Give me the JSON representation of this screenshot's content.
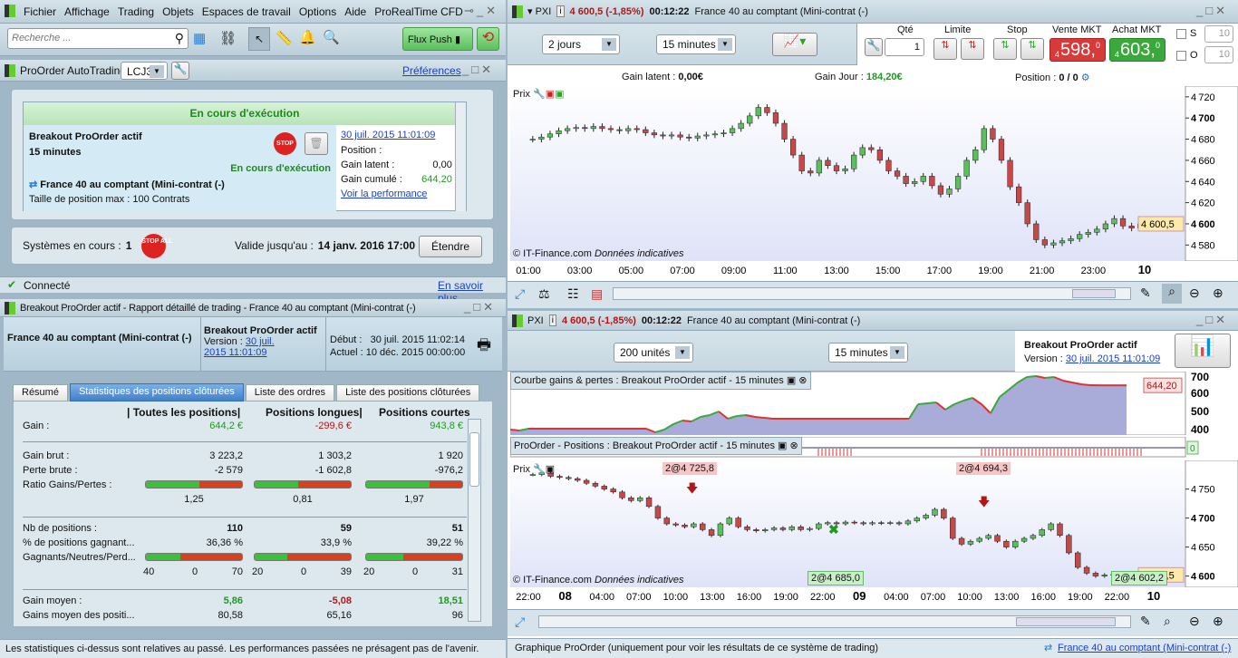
{
  "menu": {
    "items": [
      "Fichier",
      "Affichage",
      "Trading",
      "Objets",
      "Espaces de travail",
      "Options",
      "Aide"
    ],
    "app_title": "ProRealTime CFD"
  },
  "toolbar": {
    "search_placeholder": "Recherche ...",
    "flux_push": "Flux Push"
  },
  "autotrading": {
    "title": "ProOrder AutoTrading",
    "account": "LCJ32",
    "preferences": "Préférences",
    "box_header": "En cours d'exécution",
    "system_name": "Breakout ProOrder actif",
    "timeframe": "15 minutes",
    "status": "En cours d'exécution",
    "instrument": "France 40 au comptant (Mini-contrat  (-)",
    "max_size": "Taille de position max : 100 Contrats",
    "date_link": "30 juil. 2015 11:01:09",
    "position_label": "Position :",
    "position_value": "0",
    "gain_latent_label": "Gain latent :",
    "gain_latent_value": "0,00 €",
    "gain_cumule_label": "Gain cumulé :",
    "gain_cumule_value": "644,20 €",
    "perf_link": "Voir la performance",
    "systems_label": "Systèmes en cours :",
    "systems_count": "1",
    "stop_all": "STOP ALL",
    "valid_label": "Valide jusqu'au :",
    "valid_value": "14 janv. 2016 17:00",
    "extend": "Étendre",
    "stop": "STOP"
  },
  "connection": {
    "status": "Connecté",
    "learn_more": "En savoir plus"
  },
  "report": {
    "title": "Breakout ProOrder actif - Rapport détaillé de trading - France 40 au comptant (Mini-contrat  (-)",
    "instrument": "France 40 au comptant (Mini-contrat  (-)",
    "system": "Breakout ProOrder actif",
    "version_label": "Version :",
    "version_link1": "30 juil.",
    "version_link2": "2015 11:01:09",
    "debut_label": "Début :",
    "debut_value": "30 juil. 2015 11:02:14",
    "actuel_label": "Actuel :",
    "actuel_value": "10 déc. 2015 00:00:00",
    "tabs": [
      "Résumé",
      "Statistiques des positions clôturées",
      "Liste des ordres",
      "Liste des positions clôturées"
    ],
    "columns": [
      "| Toutes les positions|",
      "Positions longues|",
      "Positions courtes"
    ],
    "rows": {
      "gain": {
        "label": "Gain :",
        "values": [
          "644,2 €",
          "-299,6 €",
          "943,8 €"
        ]
      },
      "gain_brut": {
        "label": "Gain brut :",
        "values": [
          "3 223,2",
          "1 303,2",
          "1 920"
        ]
      },
      "perte_brute": {
        "label": "Perte brute :",
        "values": [
          "-2 579",
          "-1 602,8",
          "-976,2"
        ]
      },
      "ratio": {
        "label": "Ratio Gains/Pertes :",
        "values": [
          "1,25",
          "0,81",
          "1,97"
        ],
        "green_fraction": [
          0.56,
          0.45,
          0.66
        ]
      },
      "nb": {
        "label": "Nb de positions :",
        "values": [
          "110",
          "59",
          "51"
        ]
      },
      "pct": {
        "label": "% de positions gagnant...",
        "values": [
          "36,36 %",
          "33,9 %",
          "39,22 %"
        ]
      },
      "gnp": {
        "label": "Gagnants/Neutres/Perd...",
        "values": [
          [
            "40",
            "0",
            "70"
          ],
          [
            "20",
            "0",
            "39"
          ],
          [
            "20",
            "0",
            "31"
          ]
        ],
        "green_fraction": [
          0.36,
          0.34,
          0.39
        ]
      },
      "gain_moyen": {
        "label": "Gain moyen :",
        "values": [
          "5,86",
          "-5,08",
          "18,51"
        ]
      },
      "gains_moyen_pos": {
        "label": "Gains moyen des positi...",
        "values": [
          "80,58",
          "65,16",
          "96"
        ]
      }
    },
    "footer": "Les statistiques ci-dessus sont relatives au passé. Les performances passées ne présagent pas de l'avenir."
  },
  "chart1": {
    "ticker": "PXI",
    "price": "4 600,5 (-1,85%)",
    "time": "00:12:22",
    "instrument": "France 40 au comptant (Mini-contrat  (-)",
    "period": "2 jours",
    "interval": "15 minutes",
    "qty_label": "Qté",
    "qty": "1",
    "limit": "Limite",
    "stop": "Stop",
    "sell_label": "Vente MKT",
    "sell_small": "4",
    "sell_big": "598,",
    "sell_sup": "0",
    "buy_label": "Achat MKT",
    "buy_small": "4",
    "buy_big": "603,",
    "buy_sup": "0",
    "s_label": "S",
    "o_label": "O",
    "s_val": "10",
    "o_val": "10",
    "gain_latent": "Gain latent :",
    "gain_latent_v": "0,00€",
    "gain_jour": "Gain Jour :",
    "gain_jour_v": "184,20€",
    "position": "Position :",
    "position_v": "0",
    "position_v2": "/ 0",
    "panel_label": "Prix",
    "source": "© IT-Finance.com",
    "source2": "Données indicatives",
    "last_price": "4 600,5"
  },
  "chart2": {
    "ticker": "PXI",
    "price": "4 600,5 (-1,85%)",
    "time": "00:12:22",
    "instrument": "France 40 au comptant (Mini-contrat  (-)",
    "units": "200 unités",
    "interval": "15 minutes",
    "system": "Breakout ProOrder actif",
    "version_label": "Version :",
    "version_link": "30 juil. 2015 11:01:09",
    "equity_title": "Courbe gains & pertes : Breakout ProOrder actif - 15 minutes",
    "equity_last": "644,20",
    "positions_title": "ProOrder - Positions : Breakout ProOrder actif - 15 minutes",
    "positions_last": "0",
    "panel_label": "Prix",
    "source": "© IT-Finance.com",
    "source2": "Données indicatives",
    "last_price": "4 600,5",
    "orders": [
      "2@4 725,8",
      "2@4 694,3",
      "2@4 685,0",
      "2@4 602,2"
    ],
    "status": "Graphique ProOrder (uniquement pour voir les résultats de ce système de trading)",
    "status_link": "France 40 au comptant (Mini-contrat  (-)"
  },
  "chart_data": [
    {
      "type": "candlestick",
      "title": "Prix",
      "ylim": [
        4570,
        4725
      ],
      "yticks": [
        4580,
        4600,
        4620,
        4640,
        4660,
        4680,
        4700,
        4720
      ],
      "xticks": [
        "01:00",
        "03:00",
        "05:00",
        "07:00",
        "09:00",
        "11:00",
        "13:00",
        "15:00",
        "17:00",
        "19:00",
        "21:00",
        "23:00",
        "10"
      ],
      "closes": [
        4680,
        4682,
        4685,
        4688,
        4690,
        4691,
        4690,
        4692,
        4690,
        4689,
        4688,
        4690,
        4689,
        4686,
        4684,
        4683,
        4684,
        4682,
        4681,
        4683,
        4684,
        4685,
        4686,
        4690,
        4695,
        4702,
        4710,
        4705,
        4695,
        4680,
        4665,
        4650,
        4648,
        4660,
        4655,
        4650,
        4652,
        4665,
        4672,
        4670,
        4660,
        4650,
        4645,
        4638,
        4640,
        4645,
        4636,
        4628,
        4633,
        4645,
        4660,
        4670,
        4690,
        4680,
        4660,
        4635,
        4620,
        4600,
        4585,
        4580,
        4582,
        4584,
        4586,
        4590,
        4592,
        4595,
        4600,
        4605,
        4598,
        4596,
        4600
      ]
    },
    {
      "type": "area",
      "title": "Courbe gains & pertes : Breakout ProOrder actif - 15 minutes",
      "ylim": [
        370,
        720
      ],
      "yticks": [
        400,
        500,
        600,
        700
      ],
      "values": [
        400,
        395,
        405,
        405,
        405,
        405,
        405,
        405,
        405,
        405,
        405,
        405,
        405,
        405,
        405,
        405,
        385,
        400,
        430,
        450,
        445,
        470,
        480,
        500,
        460,
        475,
        480,
        470,
        465,
        460,
        460,
        460,
        460,
        460,
        460,
        460,
        460,
        460,
        460,
        460,
        460,
        460,
        460,
        460,
        460,
        540,
        545,
        550,
        510,
        540,
        560,
        575,
        540,
        490,
        580,
        620,
        660,
        690,
        695,
        685,
        690,
        670,
        660,
        650,
        645,
        644.2,
        644.2,
        644.2,
        644.2
      ]
    },
    {
      "type": "candlestick",
      "title": "Prix",
      "ylim": [
        4590,
        4790
      ],
      "yticks": [
        4600,
        4650,
        4700,
        4750
      ],
      "xticks": [
        "22:00",
        "08",
        "04:00",
        "07:00",
        "10:00",
        "13:00",
        "16:00",
        "19:00",
        "22:00",
        "09",
        "04:00",
        "07:00",
        "10:00",
        "13:00",
        "16:00",
        "19:00",
        "22:00",
        "10"
      ],
      "closes": [
        4775,
        4778,
        4772,
        4770,
        4768,
        4765,
        4760,
        4755,
        4750,
        4745,
        4735,
        4730,
        4735,
        4720,
        4700,
        4690,
        4688,
        4685,
        4690,
        4680,
        4670,
        4690,
        4700,
        4685,
        4680,
        4678,
        4680,
        4683,
        4680,
        4685,
        4680,
        4682,
        4690,
        4692,
        4690,
        4693,
        4692,
        4690,
        4692,
        4691,
        4692,
        4690,
        4695,
        4700,
        4705,
        4715,
        4700,
        4665,
        4655,
        4660,
        4665,
        4670,
        4660,
        4650,
        4660,
        4665,
        4670,
        4680,
        4690,
        4670,
        4640,
        4615,
        4605,
        4600,
        4602,
        4603,
        4605,
        4602,
        4604,
        4602
      ]
    }
  ]
}
